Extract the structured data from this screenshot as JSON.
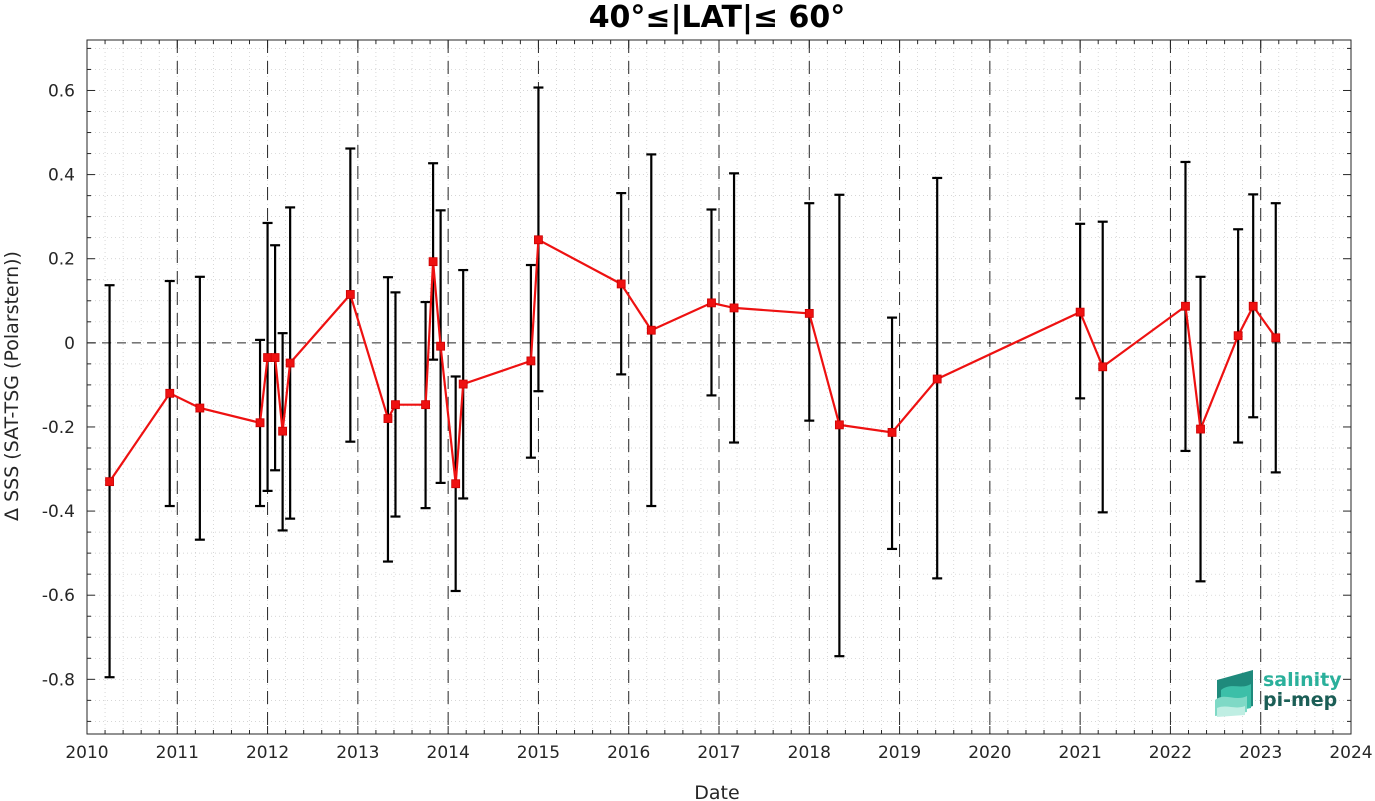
{
  "chart_data": {
    "type": "line",
    "title": "40°≤|LAT|≤ 60°",
    "xlabel": "Date",
    "ylabel": "Δ SSS (SAT-TSG (Polarstern))",
    "xlim": [
      "2010-01-01",
      "2024-01-01"
    ],
    "ylim": [
      -0.93,
      0.72
    ],
    "x_ticks": [
      "2010",
      "2011",
      "2012",
      "2013",
      "2014",
      "2015",
      "2016",
      "2017",
      "2018",
      "2019",
      "2020",
      "2021",
      "2022",
      "2023",
      "2024"
    ],
    "y_ticks": [
      -0.8,
      -0.6,
      -0.4,
      -0.2,
      0,
      0.2,
      0.4,
      0.6
    ],
    "y_tick_labels": [
      "-0.8",
      "-0.6",
      "-0.4",
      "-0.2",
      "0",
      "0.2",
      "0.4",
      "0.6"
    ],
    "grid": "dotted minor grid",
    "reference_line_y": 0,
    "year_separator_lines": [
      "2011",
      "2012",
      "2013",
      "2014",
      "2015",
      "2016",
      "2017",
      "2018",
      "2019",
      "2020",
      "2021",
      "2022",
      "2023"
    ],
    "series": [
      {
        "color": "#ee1111",
        "marker": "square",
        "x": [
          "2010-04",
          "2010-12",
          "2011-04",
          "2011-12",
          "2012-01",
          "2012-02",
          "2012-03",
          "2012-04",
          "2012-12",
          "2013-05",
          "2013-06",
          "2013-10",
          "2013-11",
          "2013-12",
          "2014-02",
          "2014-03",
          "2014-12",
          "2015-01",
          "2015-12",
          "2016-04",
          "2016-12",
          "2017-03",
          "2018-01",
          "2018-05",
          "2018-12",
          "2019-06",
          "2021-01",
          "2021-04",
          "2022-03",
          "2022-05",
          "2022-10",
          "2022-12",
          "2023-03"
        ],
        "y": [
          -0.33,
          -0.12,
          -0.155,
          -0.19,
          -0.035,
          -0.035,
          -0.21,
          -0.048,
          0.115,
          -0.18,
          -0.147,
          -0.147,
          0.193,
          -0.008,
          -0.335,
          -0.098,
          -0.043,
          0.245,
          0.14,
          0.03,
          0.095,
          0.083,
          0.07,
          -0.195,
          -0.213,
          -0.086,
          0.073,
          -0.057,
          0.087,
          -0.205,
          0.017,
          0.087,
          0.012
        ],
        "err_low": [
          -0.795,
          -0.388,
          -0.468,
          -0.388,
          -0.352,
          -0.303,
          -0.446,
          -0.418,
          -0.235,
          -0.52,
          -0.413,
          -0.393,
          -0.04,
          -0.333,
          -0.59,
          -0.37,
          -0.273,
          -0.115,
          -0.075,
          -0.388,
          -0.125,
          -0.237,
          -0.185,
          -0.745,
          -0.49,
          -0.56,
          -0.132,
          -0.403,
          -0.257,
          -0.567,
          -0.237,
          -0.177,
          -0.308
        ],
        "err_high": [
          0.137,
          0.147,
          0.157,
          0.007,
          0.285,
          0.232,
          0.023,
          0.322,
          0.462,
          0.156,
          0.12,
          0.097,
          0.427,
          0.315,
          -0.08,
          0.173,
          0.185,
          0.607,
          0.356,
          0.448,
          0.317,
          0.403,
          0.332,
          0.352,
          0.06,
          0.392,
          0.283,
          0.288,
          0.43,
          0.157,
          0.27,
          0.353,
          0.332
        ]
      }
    ]
  },
  "logo": {
    "line1": "salinity",
    "line2": "pi-mep",
    "color1": "#2ab09b",
    "color2": "#1b5e56"
  }
}
